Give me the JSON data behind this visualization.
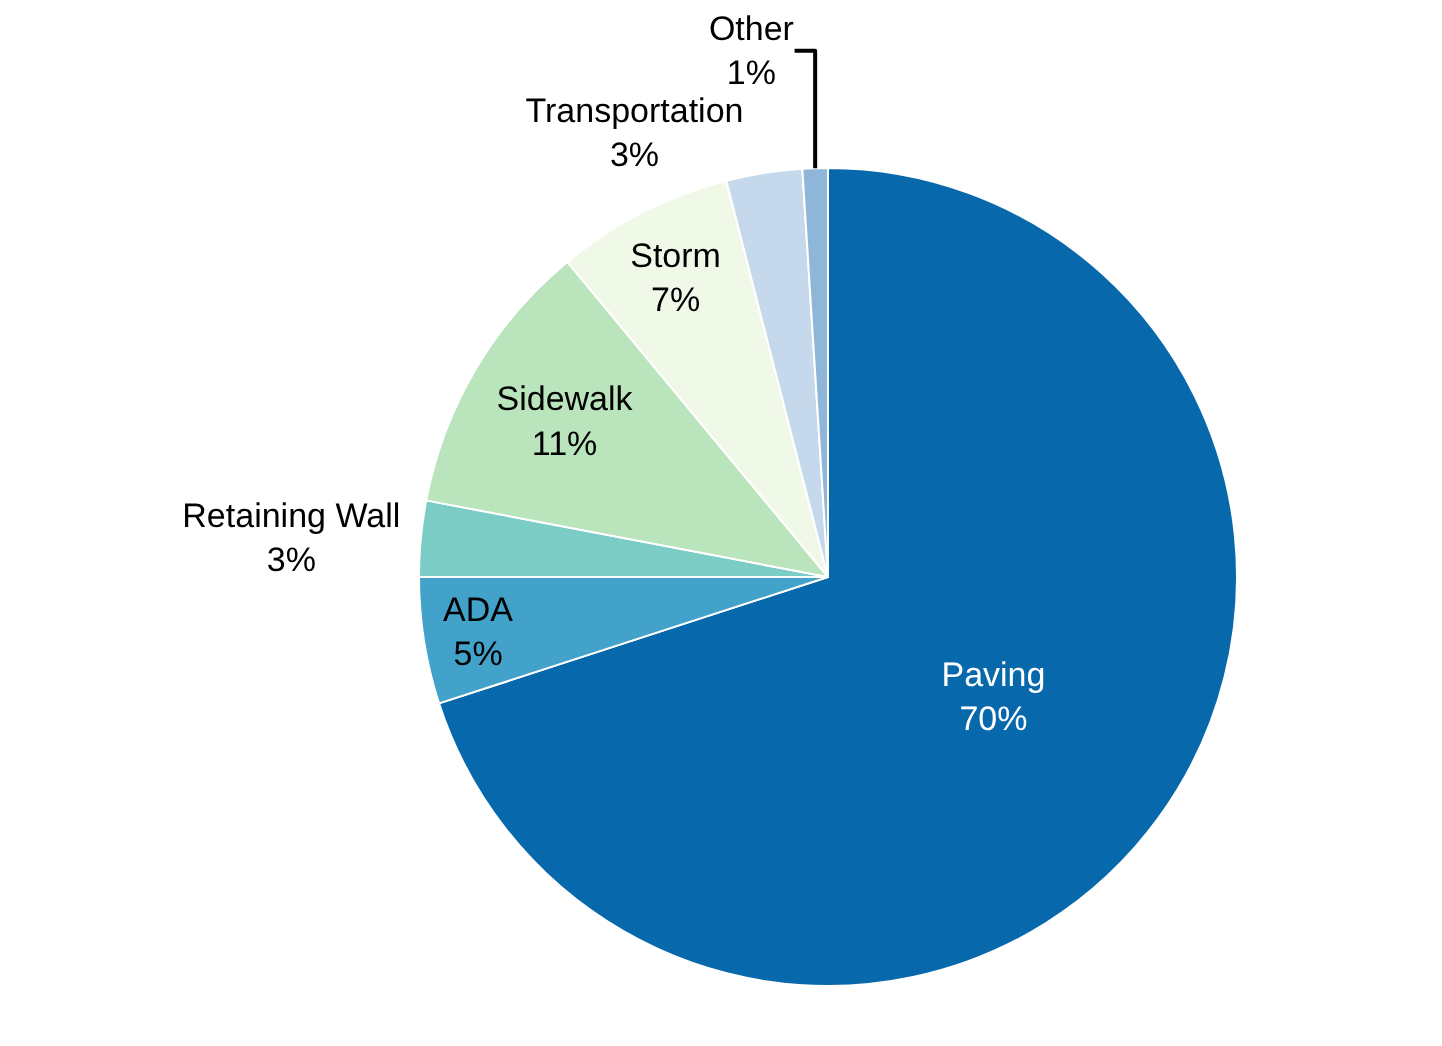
{
  "chart_data": {
    "type": "pie",
    "categories": [
      "Paving",
      "ADA",
      "Retaining Wall",
      "Sidewalk",
      "Storm",
      "Transportation",
      "Other"
    ],
    "values": [
      70,
      5,
      3,
      11,
      7,
      3,
      1
    ],
    "value_labels": [
      "70%",
      "5%",
      "3%",
      "11%",
      "7%",
      "3%",
      "1%"
    ],
    "colors": [
      "#0868ac",
      "#43a2ca",
      "#7bccc4",
      "#bae4bc",
      "#f0f9e8",
      "#c6d9ec",
      "#8fb6d8"
    ],
    "legend": false
  }
}
